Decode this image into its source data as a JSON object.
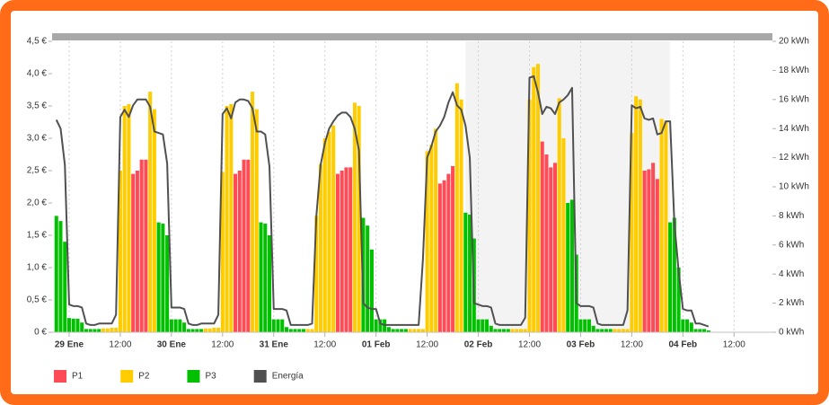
{
  "chart_data": {
    "type": "bar",
    "xlim": [
      -4,
      165
    ],
    "xticks": [
      {
        "value": 0,
        "label": "29 Ene"
      },
      {
        "value": 12,
        "label": "12:00"
      },
      {
        "value": 24,
        "label": "30 Ene"
      },
      {
        "value": 36,
        "label": "12:00"
      },
      {
        "value": 48,
        "label": "31 Ene"
      },
      {
        "value": 60,
        "label": "12:00"
      },
      {
        "value": 72,
        "label": "01 Feb"
      },
      {
        "value": 84,
        "label": "12:00"
      },
      {
        "value": 96,
        "label": "02 Feb"
      },
      {
        "value": 108,
        "label": "12:00"
      },
      {
        "value": 120,
        "label": "03 Feb"
      },
      {
        "value": 132,
        "label": "12:00"
      },
      {
        "value": 144,
        "label": "04 Feb"
      },
      {
        "value": 156,
        "label": "12:00"
      }
    ],
    "ylim": [
      0,
      4.5
    ],
    "yticks": [
      {
        "value": 0,
        "label": "0 €"
      },
      {
        "value": 0.5,
        "label": "0,5 €"
      },
      {
        "value": 1,
        "label": "1,0 €"
      },
      {
        "value": 1.5,
        "label": "1,5 €"
      },
      {
        "value": 2,
        "label": "2,0 €"
      },
      {
        "value": 2.5,
        "label": "2,5 €"
      },
      {
        "value": 3,
        "label": "3,0 €"
      },
      {
        "value": 3.5,
        "label": "3,5 €"
      },
      {
        "value": 4,
        "label": "4,0 €"
      },
      {
        "value": 4.5,
        "label": "4,5 €"
      }
    ],
    "y2lim": [
      0,
      20
    ],
    "y2ticks": [
      {
        "value": 0,
        "label": "0 kWh"
      },
      {
        "value": 2,
        "label": "2 kWh"
      },
      {
        "value": 4,
        "label": "4 kWh"
      },
      {
        "value": 6,
        "label": "6 kWh"
      },
      {
        "value": 8,
        "label": "8 kWh"
      },
      {
        "value": 10,
        "label": "10 kWh"
      },
      {
        "value": 12,
        "label": "12 kWh"
      },
      {
        "value": 14,
        "label": "14 kWh"
      },
      {
        "value": 16,
        "label": "16 kWh"
      },
      {
        "value": 18,
        "label": "18 kWh"
      },
      {
        "value": 20,
        "label": "20 kWh"
      }
    ],
    "highlight_x": [
      93,
      141
    ],
    "x": [
      -3,
      -2,
      -1,
      0,
      1,
      2,
      3,
      4,
      5,
      6,
      7,
      8,
      9,
      10,
      11,
      12,
      13,
      14,
      15,
      16,
      17,
      18,
      19,
      20,
      21,
      22,
      23,
      24,
      25,
      26,
      27,
      28,
      29,
      30,
      31,
      32,
      33,
      34,
      35,
      36,
      37,
      38,
      39,
      40,
      41,
      42,
      43,
      44,
      45,
      46,
      47,
      48,
      49,
      50,
      51,
      52,
      53,
      54,
      55,
      56,
      57,
      58,
      59,
      60,
      61,
      62,
      63,
      64,
      65,
      66,
      67,
      68,
      69,
      70,
      71,
      72,
      73,
      74,
      75,
      76,
      77,
      78,
      79,
      80,
      81,
      82,
      83,
      84,
      85,
      86,
      87,
      88,
      89,
      90,
      91,
      92,
      93,
      94,
      95,
      96,
      97,
      98,
      99,
      100,
      101,
      102,
      103,
      104,
      105,
      106,
      107,
      108,
      109,
      110,
      111,
      112,
      113,
      114,
      115,
      116,
      117,
      118,
      119,
      120,
      121,
      122,
      123,
      124,
      125,
      126,
      127,
      128,
      129,
      130,
      131,
      132,
      133,
      134,
      135,
      136,
      137,
      138,
      139,
      140,
      141,
      142,
      143,
      144,
      145,
      146,
      147,
      148,
      149,
      150
    ],
    "series": [
      {
        "name": "P1",
        "color": "#ff4b55",
        "values": [
          null,
          null,
          null,
          null,
          null,
          null,
          null,
          null,
          null,
          null,
          null,
          null,
          null,
          null,
          null,
          null,
          null,
          null,
          2.45,
          2.5,
          2.67,
          2.67,
          null,
          null,
          null,
          null,
          null,
          null,
          null,
          null,
          null,
          null,
          null,
          null,
          null,
          null,
          null,
          null,
          null,
          null,
          null,
          null,
          2.45,
          2.5,
          2.67,
          2.67,
          null,
          null,
          null,
          null,
          null,
          null,
          null,
          null,
          null,
          null,
          null,
          null,
          null,
          null,
          null,
          null,
          null,
          null,
          null,
          null,
          2.45,
          2.5,
          2.55,
          2.55,
          null,
          null,
          null,
          null,
          null,
          null,
          null,
          null,
          null,
          null,
          null,
          null,
          null,
          null,
          null,
          null,
          null,
          null,
          null,
          null,
          2.3,
          2.35,
          2.45,
          2.57,
          null,
          null,
          null,
          null,
          null,
          null,
          null,
          null,
          null,
          null,
          null,
          null,
          null,
          null,
          null,
          null,
          null,
          null,
          null,
          null,
          2.95,
          2.75,
          2.55,
          2.62,
          null,
          null,
          null,
          null,
          null,
          null,
          null,
          null,
          null,
          null,
          null,
          null,
          null,
          null,
          null,
          null,
          null,
          null,
          null,
          null,
          2.5,
          2.52,
          2.62,
          2.37,
          null,
          null,
          null,
          null,
          null,
          null,
          null,
          null,
          null,
          null,
          null,
          null
        ]
      },
      {
        "name": "P2",
        "color": "#ffcc00",
        "values": [
          null,
          null,
          null,
          null,
          null,
          null,
          null,
          null,
          null,
          null,
          null,
          0.06,
          0.06,
          0.07,
          0.07,
          2.5,
          3.5,
          3.53,
          null,
          null,
          null,
          null,
          3.72,
          3.45,
          null,
          null,
          null,
          null,
          null,
          null,
          null,
          null,
          null,
          null,
          null,
          0.06,
          0.06,
          0.07,
          0.07,
          2.48,
          3.5,
          3.53,
          null,
          null,
          null,
          null,
          3.72,
          3.45,
          null,
          null,
          null,
          null,
          null,
          null,
          null,
          null,
          null,
          null,
          null,
          0.05,
          0.05,
          1.8,
          2.6,
          3.0,
          3.1,
          3.2,
          null,
          null,
          null,
          null,
          3.55,
          3.5,
          null,
          null,
          null,
          null,
          null,
          null,
          null,
          null,
          null,
          null,
          null,
          0.05,
          0.05,
          0.05,
          0.05,
          2.8,
          2.9,
          3.15,
          null,
          null,
          null,
          null,
          3.85,
          3.6,
          null,
          null,
          null,
          null,
          null,
          null,
          null,
          null,
          null,
          null,
          null,
          0.05,
          0.05,
          0.05,
          0.05,
          3.6,
          4.1,
          4.15,
          null,
          null,
          null,
          null,
          3.62,
          3.0,
          null,
          null,
          null,
          null,
          null,
          null,
          null,
          null,
          null,
          null,
          null,
          0.05,
          0.05,
          0.05,
          0.05,
          3.08,
          3.65,
          3.6,
          null,
          null,
          null,
          null,
          3.3,
          3.27,
          null,
          null,
          null,
          null,
          null,
          null,
          null,
          null,
          null,
          null
        ]
      },
      {
        "name": "P3",
        "color": "#00c000",
        "values": [
          1.8,
          1.72,
          1.4,
          0.22,
          0.21,
          0.21,
          0.15,
          0.05,
          0.05,
          0.05,
          0.05,
          null,
          null,
          null,
          null,
          null,
          null,
          null,
          null,
          null,
          null,
          null,
          null,
          null,
          1.7,
          1.68,
          1.5,
          0.2,
          0.2,
          0.2,
          0.15,
          0.05,
          0.05,
          0.05,
          0.05,
          null,
          null,
          null,
          null,
          null,
          null,
          null,
          null,
          null,
          null,
          null,
          null,
          null,
          1.7,
          1.68,
          1.5,
          0.2,
          0.2,
          0.2,
          0.08,
          0.05,
          0.05,
          0.05,
          0.05,
          null,
          null,
          null,
          null,
          null,
          null,
          null,
          null,
          null,
          null,
          null,
          null,
          null,
          1.77,
          1.65,
          1.28,
          0.2,
          0.2,
          0.2,
          0.08,
          0.05,
          0.05,
          0.05,
          0.05,
          null,
          null,
          null,
          null,
          null,
          null,
          null,
          null,
          null,
          null,
          null,
          null,
          null,
          1.85,
          1.82,
          1.45,
          0.2,
          0.2,
          0.2,
          0.1,
          0.05,
          0.05,
          0.05,
          0.05,
          null,
          null,
          null,
          null,
          null,
          null,
          null,
          null,
          null,
          null,
          null,
          null,
          null,
          2.0,
          2.05,
          1.2,
          0.2,
          0.2,
          0.2,
          0.1,
          0.05,
          0.05,
          0.05,
          0.05,
          null,
          null,
          null,
          null,
          null,
          null,
          null,
          null,
          null,
          null,
          null,
          null,
          null,
          1.7,
          1.77,
          1.0,
          0.2,
          0.2,
          0.15,
          0.05,
          0.05,
          0.05,
          0.03
        ]
      },
      {
        "name": "Energía",
        "color": "#505050",
        "type": "line",
        "axis": "y2",
        "values": [
          14.6,
          14.0,
          11.5,
          1.9,
          1.8,
          1.8,
          1.7,
          0.6,
          0.5,
          0.5,
          0.6,
          0.6,
          0.6,
          0.6,
          1.2,
          14.8,
          15.3,
          14.8,
          15.6,
          16.0,
          16.0,
          16.0,
          15.5,
          13.8,
          13.7,
          13.6,
          11.6,
          1.7,
          1.7,
          1.7,
          1.6,
          0.6,
          0.5,
          0.5,
          0.6,
          0.6,
          0.6,
          0.6,
          1.2,
          15.0,
          15.4,
          14.7,
          15.8,
          16.0,
          16.0,
          15.9,
          15.4,
          13.8,
          13.8,
          13.6,
          11.4,
          1.6,
          1.6,
          1.6,
          1.5,
          0.5,
          0.5,
          0.5,
          0.5,
          0.5,
          0.6,
          8.0,
          11.5,
          13.0,
          14.0,
          14.5,
          14.9,
          15.1,
          15.1,
          14.8,
          14.0,
          12.5,
          2.0,
          1.7,
          1.6,
          1.6,
          0.6,
          0.5,
          0.5,
          0.5,
          0.5,
          0.5,
          0.5,
          0.5,
          0.5,
          0.5,
          5.0,
          12.0,
          12.8,
          13.8,
          14.2,
          14.8,
          15.8,
          16.5,
          15.6,
          15.3,
          14.2,
          12.0,
          2.0,
          1.9,
          1.8,
          1.8,
          1.7,
          0.6,
          0.5,
          0.5,
          0.5,
          0.5,
          0.5,
          0.5,
          1.0,
          17.5,
          17.6,
          16.5,
          15.0,
          15.5,
          15.4,
          15.0,
          15.8,
          16.0,
          16.3,
          16.8,
          2.0,
          1.8,
          1.8,
          1.8,
          1.7,
          0.6,
          0.5,
          0.5,
          0.5,
          0.5,
          0.5,
          0.5,
          1.5,
          15.6,
          15.4,
          15.5,
          14.7,
          14.6,
          14.7,
          13.6,
          13.7,
          14.5,
          14.5,
          7.5,
          4.2,
          1.6,
          1.5,
          1.5,
          0.6,
          0.6,
          0.5,
          0.4
        ]
      }
    ]
  }
}
